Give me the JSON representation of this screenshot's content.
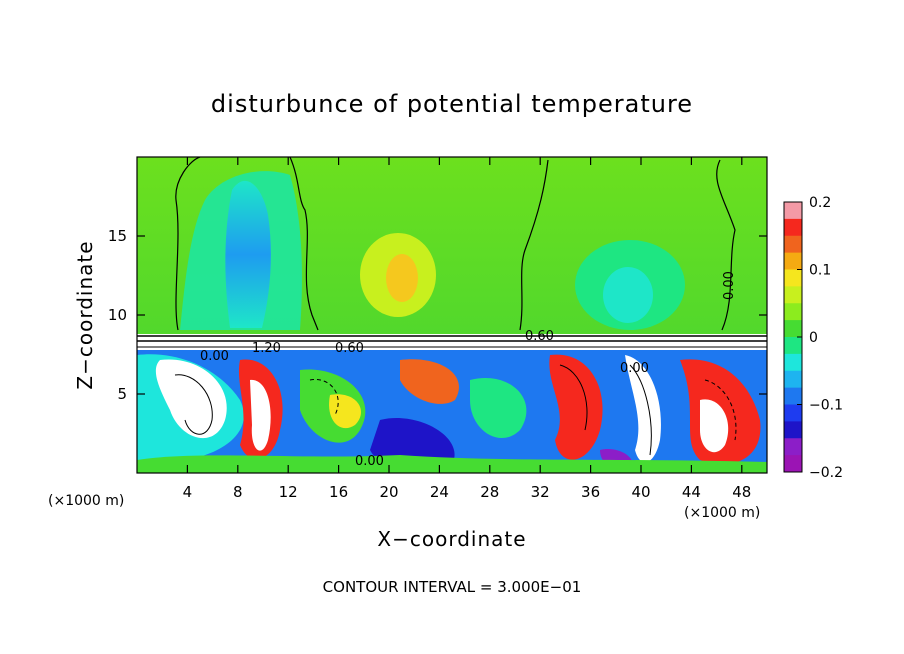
{
  "chart_data": {
    "type": "heatmap",
    "title": "disturbunce of potential temperature",
    "xlabel": "X−coordinate",
    "ylabel": "Z−coordinate",
    "x_unit_left": "(×1000 m)",
    "x_unit_right": "(×1000 m)",
    "footer": "CONTOUR INTERVAL = 3.000E−01",
    "xlim": [
      0,
      50
    ],
    "ylim": [
      0,
      20
    ],
    "xticks": [
      4,
      8,
      12,
      16,
      20,
      24,
      28,
      32,
      36,
      40,
      44,
      48
    ],
    "xtick_labels": [
      "4",
      "8",
      "12",
      "16",
      "20",
      "24",
      "28",
      "32",
      "36",
      "40",
      "44",
      "48"
    ],
    "yticks": [
      5,
      10,
      15
    ],
    "ytick_labels": [
      "5",
      "10",
      "15"
    ],
    "colorbar": {
      "range": [
        -0.2,
        0.2
      ],
      "ticks": [
        0.2,
        0.1,
        0,
        -0.1,
        -0.2
      ],
      "tick_labels": [
        "0.2",
        "0.1",
        "0",
        "−0.1",
        "−0.2"
      ],
      "colors": [
        "#f49aa6",
        "#f5281e",
        "#f0641e",
        "#f5aa12",
        "#f5e61e",
        "#c8f01e",
        "#8cec1e",
        "#46dc32",
        "#1ee682",
        "#1ee6dc",
        "#1eb4f0",
        "#1e78f0",
        "#1e3cf0",
        "#1e14c8",
        "#8c1ec8",
        "#9b14b4"
      ]
    },
    "contour_labels": [
      "0.00",
      "1.20",
      "0.60",
      "0.00",
      "0.60",
      "0.00",
      "0.00"
    ],
    "grid": false,
    "legend": "colorbar-right"
  }
}
